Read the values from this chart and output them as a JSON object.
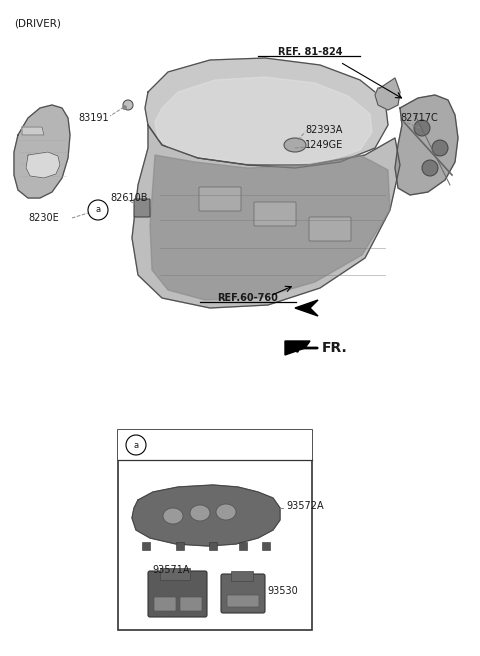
{
  "bg_color": "#ffffff",
  "fig_width": 4.8,
  "fig_height": 6.56,
  "dpi": 100,
  "header_text": "(DRIVER)",
  "ref_81824_text": "REF. 81-824",
  "ref_60760_text": "REF.60-760",
  "fr_label": "FR.",
  "colors": {
    "text": "#1a1a1a",
    "dashed": "#999999",
    "dark_gray": "#6a6a6a",
    "mid_gray": "#9a9a9a",
    "light_gray": "#c8c8c8",
    "box_border": "#2a2a2a",
    "black": "#000000"
  }
}
